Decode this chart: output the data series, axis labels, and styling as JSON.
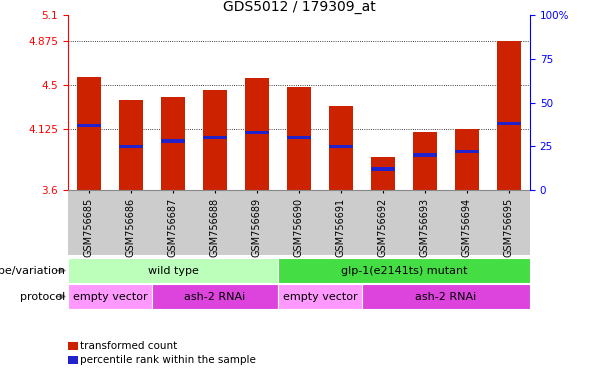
{
  "title": "GDS5012 / 179309_at",
  "samples": [
    "GSM756685",
    "GSM756686",
    "GSM756687",
    "GSM756688",
    "GSM756689",
    "GSM756690",
    "GSM756691",
    "GSM756692",
    "GSM756693",
    "GSM756694",
    "GSM756695"
  ],
  "transformed_count": [
    4.57,
    4.37,
    4.4,
    4.46,
    4.56,
    4.48,
    4.32,
    3.88,
    4.1,
    4.12,
    4.88
  ],
  "percentile_rank": [
    37,
    25,
    28,
    30,
    33,
    30,
    25,
    12,
    20,
    22,
    38
  ],
  "ylim_left": [
    3.6,
    5.1
  ],
  "yticks_left": [
    3.6,
    4.125,
    4.5,
    4.875,
    5.1
  ],
  "ytick_labels_left": [
    "3.6",
    "4.125",
    "4.5",
    "4.875",
    "5.1"
  ],
  "yticks_right": [
    0,
    25,
    50,
    75,
    100
  ],
  "ytick_labels_right": [
    "0",
    "25",
    "50",
    "75",
    "100%"
  ],
  "bar_bottom": 3.6,
  "bar_color_red": "#CC2200",
  "bar_color_blue": "#2222CC",
  "genotype_groups": [
    {
      "label": "wild type",
      "start": 0,
      "end": 5,
      "color": "#BBFFBB"
    },
    {
      "label": "glp-1(e2141ts) mutant",
      "start": 5,
      "end": 11,
      "color": "#44DD44"
    }
  ],
  "protocol_groups": [
    {
      "label": "empty vector",
      "start": 0,
      "end": 2,
      "color": "#FF99FF"
    },
    {
      "label": "ash-2 RNAi",
      "start": 2,
      "end": 5,
      "color": "#DD44DD"
    },
    {
      "label": "empty vector",
      "start": 5,
      "end": 7,
      "color": "#FF99FF"
    },
    {
      "label": "ash-2 RNAi",
      "start": 7,
      "end": 11,
      "color": "#DD44DD"
    }
  ],
  "legend_red": "transformed count",
  "legend_blue": "percentile rank within the sample",
  "grid_yticks": [
    4.125,
    4.5,
    4.875
  ],
  "xtick_bg_color": "#CCCCCC",
  "label_fontsize": 7,
  "tick_fontsize": 7.5,
  "title_fontsize": 10,
  "annotation_fontsize": 8,
  "label_row_fontsize": 8
}
